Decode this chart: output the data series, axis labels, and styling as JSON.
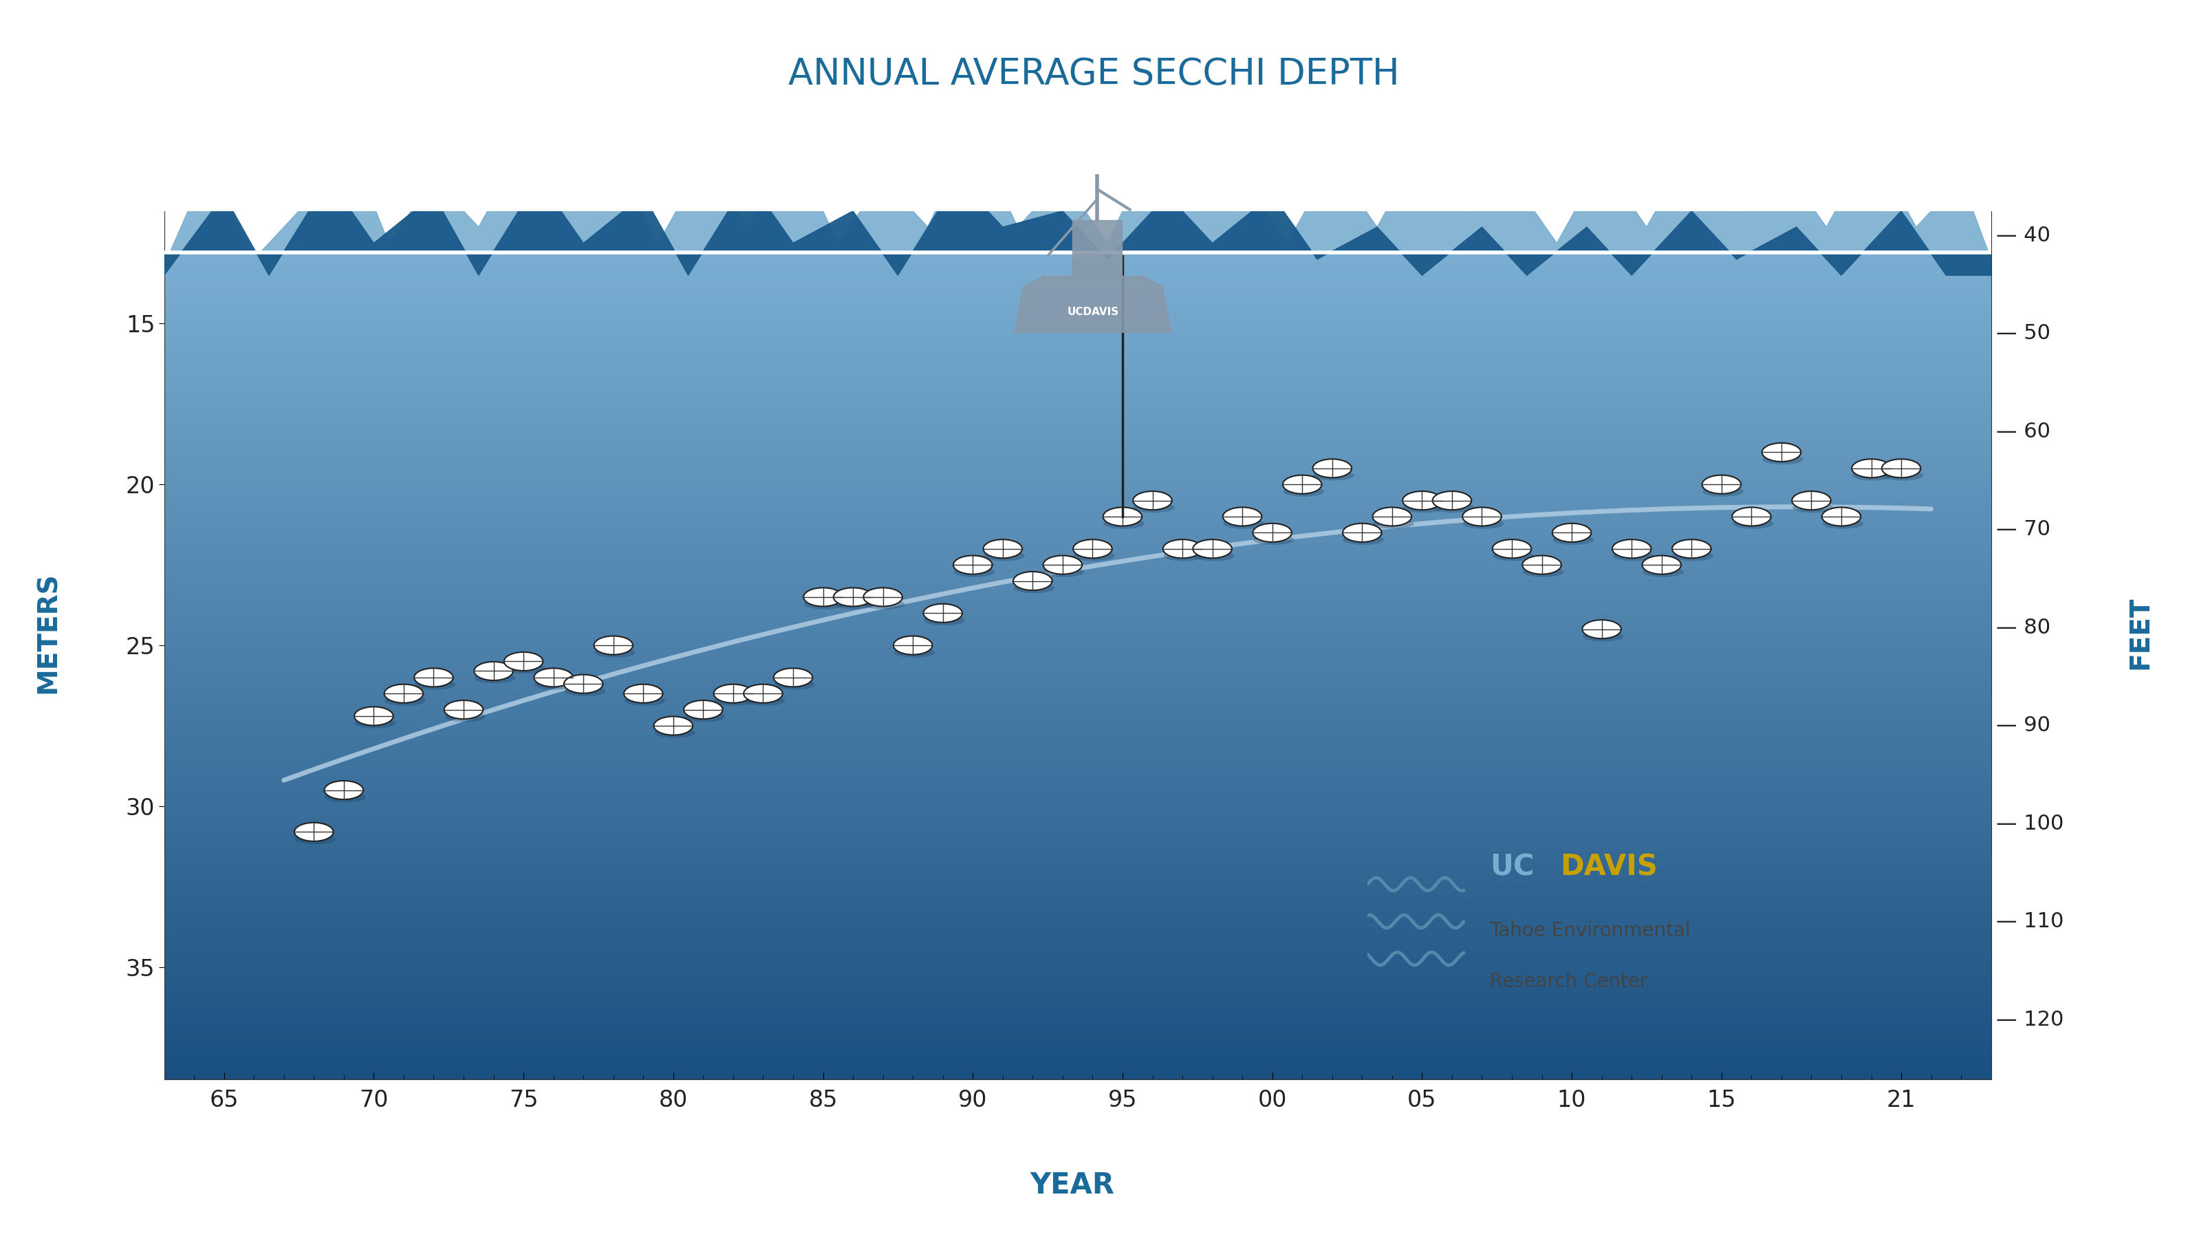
{
  "title": "ANNUAL AVERAGE SECCHI DEPTH",
  "title_color": "#1a6b9a",
  "xlabel": "YEAR",
  "ylabel_left": "METERS",
  "ylabel_right": "FEET",
  "bg_color": "#ffffff",
  "years": [
    1968,
    1969,
    1970,
    1971,
    1972,
    1973,
    1974,
    1975,
    1976,
    1977,
    1978,
    1979,
    1980,
    1981,
    1982,
    1983,
    1984,
    1985,
    1986,
    1987,
    1988,
    1989,
    1990,
    1991,
    1992,
    1993,
    1994,
    1995,
    1996,
    1997,
    1998,
    1999,
    2000,
    2001,
    2002,
    2003,
    2004,
    2005,
    2006,
    2007,
    2008,
    2009,
    2010,
    2011,
    2012,
    2013,
    2014,
    2015,
    2016,
    2017,
    2018,
    2019,
    2020,
    2021
  ],
  "depths_m": [
    30.8,
    29.5,
    27.2,
    26.5,
    26.0,
    27.0,
    25.8,
    25.5,
    26.0,
    26.2,
    25.0,
    26.5,
    27.5,
    27.0,
    26.5,
    26.5,
    26.0,
    23.5,
    23.5,
    23.5,
    25.0,
    24.0,
    22.5,
    22.0,
    23.0,
    22.5,
    22.0,
    21.0,
    20.5,
    22.0,
    22.0,
    21.0,
    21.5,
    20.0,
    19.5,
    21.5,
    21.0,
    20.5,
    20.5,
    21.0,
    22.0,
    22.5,
    21.5,
    24.5,
    22.0,
    22.5,
    22.0,
    20.0,
    21.0,
    19.0,
    20.5,
    21.0,
    19.5,
    19.5
  ],
  "trend_color": "#aac8e0",
  "x_tick_vals": [
    1965,
    1970,
    1975,
    1980,
    1985,
    1990,
    1995,
    2000,
    2005,
    2010,
    2015,
    2021
  ],
  "x_tick_labels": [
    "65",
    "70",
    "75",
    "80",
    "85",
    "90",
    "95",
    "00",
    "05",
    "10",
    "15",
    "21"
  ],
  "y_ticks_m": [
    15,
    20,
    25,
    30,
    35
  ],
  "y_ticks_ft": [
    40,
    50,
    60,
    70,
    80,
    90,
    100,
    110,
    120
  ],
  "ylim_bottom": 38.5,
  "ylim_top": 11.5,
  "surface_y": 12.8,
  "xlim_left": 1963.0,
  "xlim_right": 2024.0,
  "boat_year": 1995,
  "mtn_light_color": "#7aadd0",
  "mtn_dark_color": "#1a5a8a",
  "surface_line_color": "#ffffff",
  "light_mtn_x": [
    1963,
    1964.5,
    1966,
    1967.5,
    1969,
    1970.5,
    1972,
    1973.5,
    1975,
    1976.5,
    1978,
    1979.5,
    1981,
    1982.5,
    1984,
    1985.5,
    1987,
    1988.5,
    1990,
    1991.5,
    1993,
    1994.5,
    1996,
    1997.5,
    1999,
    2000.5,
    2002,
    2003.5,
    2005,
    2006.5,
    2008,
    2009.5,
    2011,
    2012.5,
    2014,
    2015.5,
    2017,
    2018.5,
    2020,
    2021.5,
    2023,
    2024
  ],
  "light_mtn_y": [
    13.2,
    10.0,
    13.0,
    11.5,
    9.0,
    12.5,
    10.5,
    12.0,
    9.5,
    11.5,
    10.0,
    12.5,
    10.0,
    12.0,
    9.5,
    12.5,
    10.5,
    12.0,
    9.0,
    12.0,
    10.5,
    12.5,
    9.5,
    11.5,
    10.5,
    12.5,
    10.0,
    12.0,
    9.5,
    11.5,
    10.5,
    12.5,
    10.0,
    12.0,
    9.5,
    11.5,
    10.0,
    12.0,
    9.5,
    12.0,
    10.5,
    13.0
  ],
  "dark_mtn_x": [
    1963,
    1965,
    1966.5,
    1968.5,
    1970,
    1972,
    1973.5,
    1975.5,
    1977,
    1979,
    1980.5,
    1982.5,
    1984,
    1986,
    1987.5,
    1989.5,
    1991,
    1993,
    1994.5,
    1996.5,
    1998,
    2000,
    2001.5,
    2003.5,
    2005,
    2007,
    2008.5,
    2010.5,
    2012,
    2014,
    2015.5,
    2017.5,
    2019,
    2021,
    2022.5,
    2024
  ],
  "dark_mtn_y": [
    13.5,
    11.0,
    13.5,
    10.5,
    12.5,
    11.0,
    13.5,
    10.5,
    12.5,
    11.0,
    13.5,
    10.5,
    12.5,
    11.5,
    13.5,
    10.5,
    12.0,
    11.5,
    13.0,
    11.0,
    12.5,
    11.0,
    13.0,
    12.0,
    13.5,
    12.0,
    13.5,
    12.0,
    13.5,
    11.5,
    13.0,
    12.0,
    13.5,
    11.5,
    13.5,
    13.5
  ]
}
